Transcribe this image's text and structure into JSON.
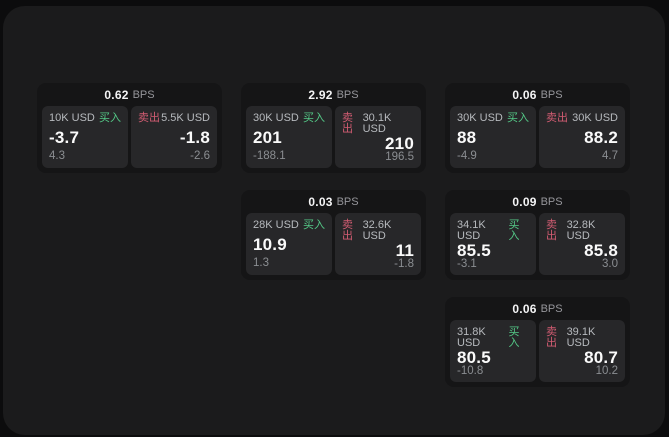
{
  "labels": {
    "bps_unit": "BPS",
    "buy": "买入",
    "sell": "卖出"
  },
  "colors": {
    "page_background": "#0c0c0d",
    "surface_background": "#1b1b1c",
    "card_background": "#151516",
    "panel_background": "#272729",
    "buy_green": "#54c987",
    "sell_red": "#d25c72",
    "primary_text": "#fafafa",
    "secondary_text": "#b7babe",
    "muted_text": "#8b8e92"
  },
  "cards": [
    {
      "col": 1,
      "row": 1,
      "bps": "0.62",
      "buy": {
        "amount": "10K USD",
        "price": "-3.7",
        "delta": "4.3"
      },
      "sell": {
        "amount": "5.5K USD",
        "price": "-1.8",
        "delta": "-2.6"
      }
    },
    {
      "col": 2,
      "row": 1,
      "bps": "2.92",
      "buy": {
        "amount": "30K USD",
        "price": "201",
        "delta": "-188.1"
      },
      "sell": {
        "amount": "30.1K USD",
        "price": "210",
        "delta": "196.5"
      }
    },
    {
      "col": 3,
      "row": 1,
      "bps": "0.06",
      "buy": {
        "amount": "30K USD",
        "price": "88",
        "delta": "-4.9"
      },
      "sell": {
        "amount": "30K USD",
        "price": "88.2",
        "delta": "4.7"
      }
    },
    {
      "col": 2,
      "row": 2,
      "bps": "0.03",
      "buy": {
        "amount": "28K USD",
        "price": "10.9",
        "delta": "1.3"
      },
      "sell": {
        "amount": "32.6K USD",
        "price": "11",
        "delta": "-1.8"
      }
    },
    {
      "col": 3,
      "row": 2,
      "bps": "0.09",
      "buy": {
        "amount": "34.1K USD",
        "price": "85.5",
        "delta": "-3.1"
      },
      "sell": {
        "amount": "32.8K USD",
        "price": "85.8",
        "delta": "3.0"
      }
    },
    {
      "col": 3,
      "row": 3,
      "bps": "0.06",
      "buy": {
        "amount": "31.8K USD",
        "price": "80.5",
        "delta": "-10.8"
      },
      "sell": {
        "amount": "39.1K USD",
        "price": "80.7",
        "delta": "10.2"
      }
    }
  ]
}
